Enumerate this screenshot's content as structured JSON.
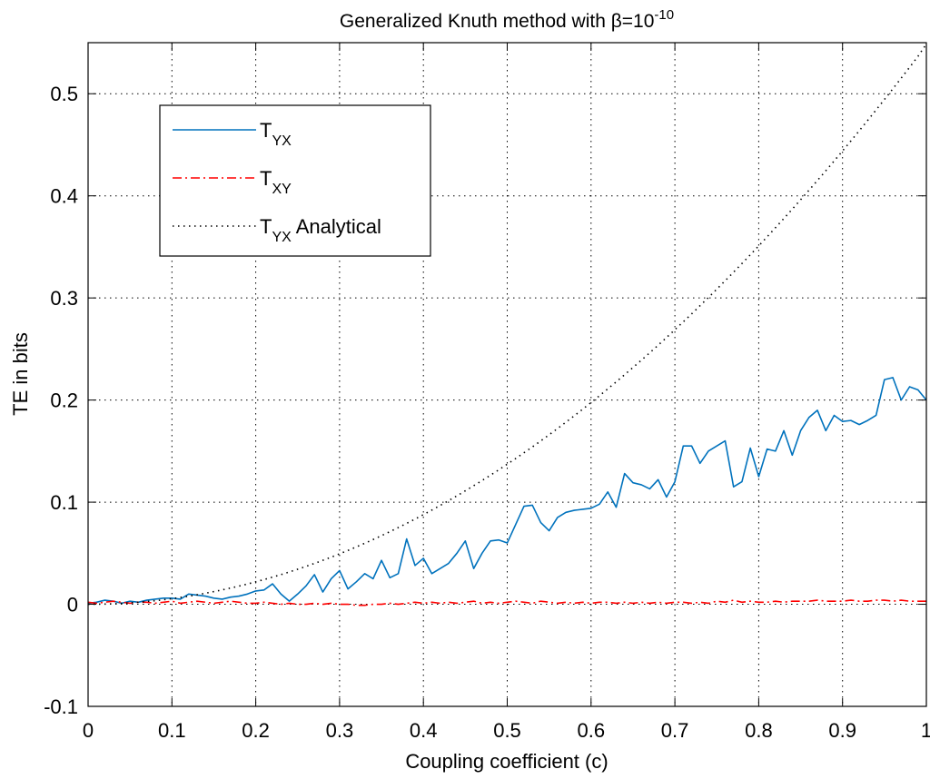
{
  "chart_data": {
    "type": "line",
    "title": "Generalized Knuth method with β=10",
    "title_superscript": "-10",
    "xlabel": "Coupling coefficient (c)",
    "ylabel": "TE in bits",
    "xlim": [
      0,
      1
    ],
    "ylim": [
      -0.1,
      0.55
    ],
    "xticks": [
      0,
      0.1,
      0.2,
      0.3,
      0.4,
      0.5,
      0.6,
      0.7,
      0.8,
      0.9,
      1
    ],
    "xtick_labels": [
      "0",
      "0.1",
      "0.2",
      "0.3",
      "0.4",
      "0.5",
      "0.6",
      "0.7",
      "0.8",
      "0.9",
      "1"
    ],
    "yticks": [
      -0.1,
      0,
      0.1,
      0.2,
      0.3,
      0.4,
      0.5
    ],
    "ytick_labels": [
      "-0.1",
      "0",
      "0.1",
      "0.2",
      "0.3",
      "0.4",
      "0.5"
    ],
    "grid": true,
    "legend_position": "top-left",
    "x": [
      0,
      0.01,
      0.02,
      0.03,
      0.04,
      0.05,
      0.06,
      0.07,
      0.08,
      0.09,
      0.1,
      0.11,
      0.12,
      0.13,
      0.14,
      0.15,
      0.16,
      0.17,
      0.18,
      0.19,
      0.2,
      0.21,
      0.22,
      0.23,
      0.24,
      0.25,
      0.26,
      0.27,
      0.28,
      0.29,
      0.3,
      0.31,
      0.32,
      0.33,
      0.34,
      0.35,
      0.36,
      0.37,
      0.38,
      0.39,
      0.4,
      0.41,
      0.42,
      0.43,
      0.44,
      0.45,
      0.46,
      0.47,
      0.48,
      0.49,
      0.5,
      0.51,
      0.52,
      0.53,
      0.54,
      0.55,
      0.56,
      0.57,
      0.58,
      0.59,
      0.6,
      0.61,
      0.62,
      0.63,
      0.64,
      0.65,
      0.66,
      0.67,
      0.68,
      0.69,
      0.7,
      0.71,
      0.72,
      0.73,
      0.74,
      0.75,
      0.76,
      0.77,
      0.78,
      0.79,
      0.8,
      0.81,
      0.82,
      0.83,
      0.84,
      0.85,
      0.86,
      0.87,
      0.88,
      0.89,
      0.9,
      0.91,
      0.92,
      0.93,
      0.94,
      0.95,
      0.96,
      0.97,
      0.98,
      0.99,
      1
    ],
    "series": [
      {
        "name": "T",
        "name_subscript": "YX",
        "color": "#0072bd",
        "style": "solid",
        "values": [
          0.001,
          0.002,
          0.004,
          0.003,
          0.001,
          0.003,
          0.002,
          0.004,
          0.005,
          0.006,
          0.006,
          0.005,
          0.01,
          0.009,
          0.008,
          0.006,
          0.005,
          0.007,
          0.008,
          0.01,
          0.013,
          0.014,
          0.02,
          0.01,
          0.003,
          0.01,
          0.018,
          0.029,
          0.012,
          0.025,
          0.033,
          0.015,
          0.022,
          0.03,
          0.025,
          0.043,
          0.026,
          0.03,
          0.064,
          0.038,
          0.045,
          0.03,
          0.035,
          0.04,
          0.05,
          0.062,
          0.035,
          0.05,
          0.062,
          0.063,
          0.06,
          0.078,
          0.096,
          0.097,
          0.08,
          0.072,
          0.085,
          0.09,
          0.092,
          0.093,
          0.094,
          0.098,
          0.11,
          0.095,
          0.128,
          0.119,
          0.117,
          0.113,
          0.122,
          0.105,
          0.12,
          0.155,
          0.155,
          0.138,
          0.15,
          0.155,
          0.16,
          0.115,
          0.12,
          0.153,
          0.125,
          0.152,
          0.15,
          0.17,
          0.146,
          0.17,
          0.183,
          0.19,
          0.17,
          0.185,
          0.179,
          0.18,
          0.176,
          0.18,
          0.185,
          0.22,
          0.222,
          0.2,
          0.213,
          0.21,
          0.2
        ]
      },
      {
        "name": "T",
        "name_subscript": "XY",
        "color": "#ff0000",
        "style": "dashdot",
        "values": [
          0.002,
          0.001,
          0.002,
          0.003,
          0.002,
          0.001,
          0.002,
          0.002,
          0.001,
          0.002,
          0.003,
          0.001,
          0.002,
          0.003,
          0.002,
          0.001,
          0.002,
          0.003,
          0.002,
          0.001,
          0.001,
          0.002,
          0.001,
          0.0,
          0.001,
          0.0,
          0.0,
          0.001,
          0.0,
          0.001,
          0.0,
          0.0,
          -0.001,
          -0.001,
          0.0,
          0.0,
          0.001,
          0.0,
          0.001,
          0.002,
          0.001,
          0.002,
          0.001,
          0.002,
          0.001,
          0.002,
          0.003,
          0.001,
          0.002,
          0.001,
          0.002,
          0.003,
          0.002,
          0.001,
          0.003,
          0.002,
          0.001,
          0.002,
          0.001,
          0.002,
          0.001,
          0.002,
          0.002,
          0.001,
          0.002,
          0.001,
          0.002,
          0.001,
          0.002,
          0.001,
          0.002,
          0.002,
          0.001,
          0.002,
          0.001,
          0.003,
          0.002,
          0.004,
          0.002,
          0.003,
          0.002,
          0.002,
          0.003,
          0.002,
          0.003,
          0.003,
          0.003,
          0.004,
          0.003,
          0.003,
          0.003,
          0.004,
          0.003,
          0.003,
          0.004,
          0.004,
          0.003,
          0.004,
          0.003,
          0.003,
          0.003
        ]
      },
      {
        "name": "T",
        "name_subscript": "YX",
        "name_suffix": " Analytical",
        "color": "#000000",
        "style": "dotted",
        "values": [
          0,
          0.0001,
          0.0002,
          0.0005,
          0.0009,
          0.0014,
          0.002,
          0.0027,
          0.0035,
          0.0044,
          0.0055,
          0.0067,
          0.0079,
          0.0093,
          0.0108,
          0.0124,
          0.0141,
          0.0159,
          0.0178,
          0.0198,
          0.022,
          0.0242,
          0.0266,
          0.029,
          0.0316,
          0.0343,
          0.0371,
          0.04,
          0.043,
          0.0461,
          0.0494,
          0.0527,
          0.0562,
          0.0597,
          0.0634,
          0.0672,
          0.0711,
          0.0751,
          0.0792,
          0.0834,
          0.0878,
          0.0922,
          0.0968,
          0.1014,
          0.1062,
          0.1111,
          0.1161,
          0.1212,
          0.1264,
          0.1317,
          0.1372,
          0.1427,
          0.1484,
          0.1541,
          0.16,
          0.166,
          0.1721,
          0.1783,
          0.1846,
          0.191,
          0.1976,
          0.2042,
          0.211,
          0.2178,
          0.2248,
          0.2319,
          0.239,
          0.2463,
          0.2537,
          0.2612,
          0.2689,
          0.2766,
          0.2844,
          0.2924,
          0.3004,
          0.3086,
          0.3169,
          0.3252,
          0.3337,
          0.3423,
          0.351,
          0.3598,
          0.3688,
          0.3778,
          0.3869,
          0.3962,
          0.4055,
          0.415,
          0.4245,
          0.4342,
          0.444,
          0.4538,
          0.4638,
          0.4739,
          0.4841,
          0.4944,
          0.5048,
          0.5153,
          0.5259,
          0.5366,
          0.5487
        ]
      }
    ]
  }
}
